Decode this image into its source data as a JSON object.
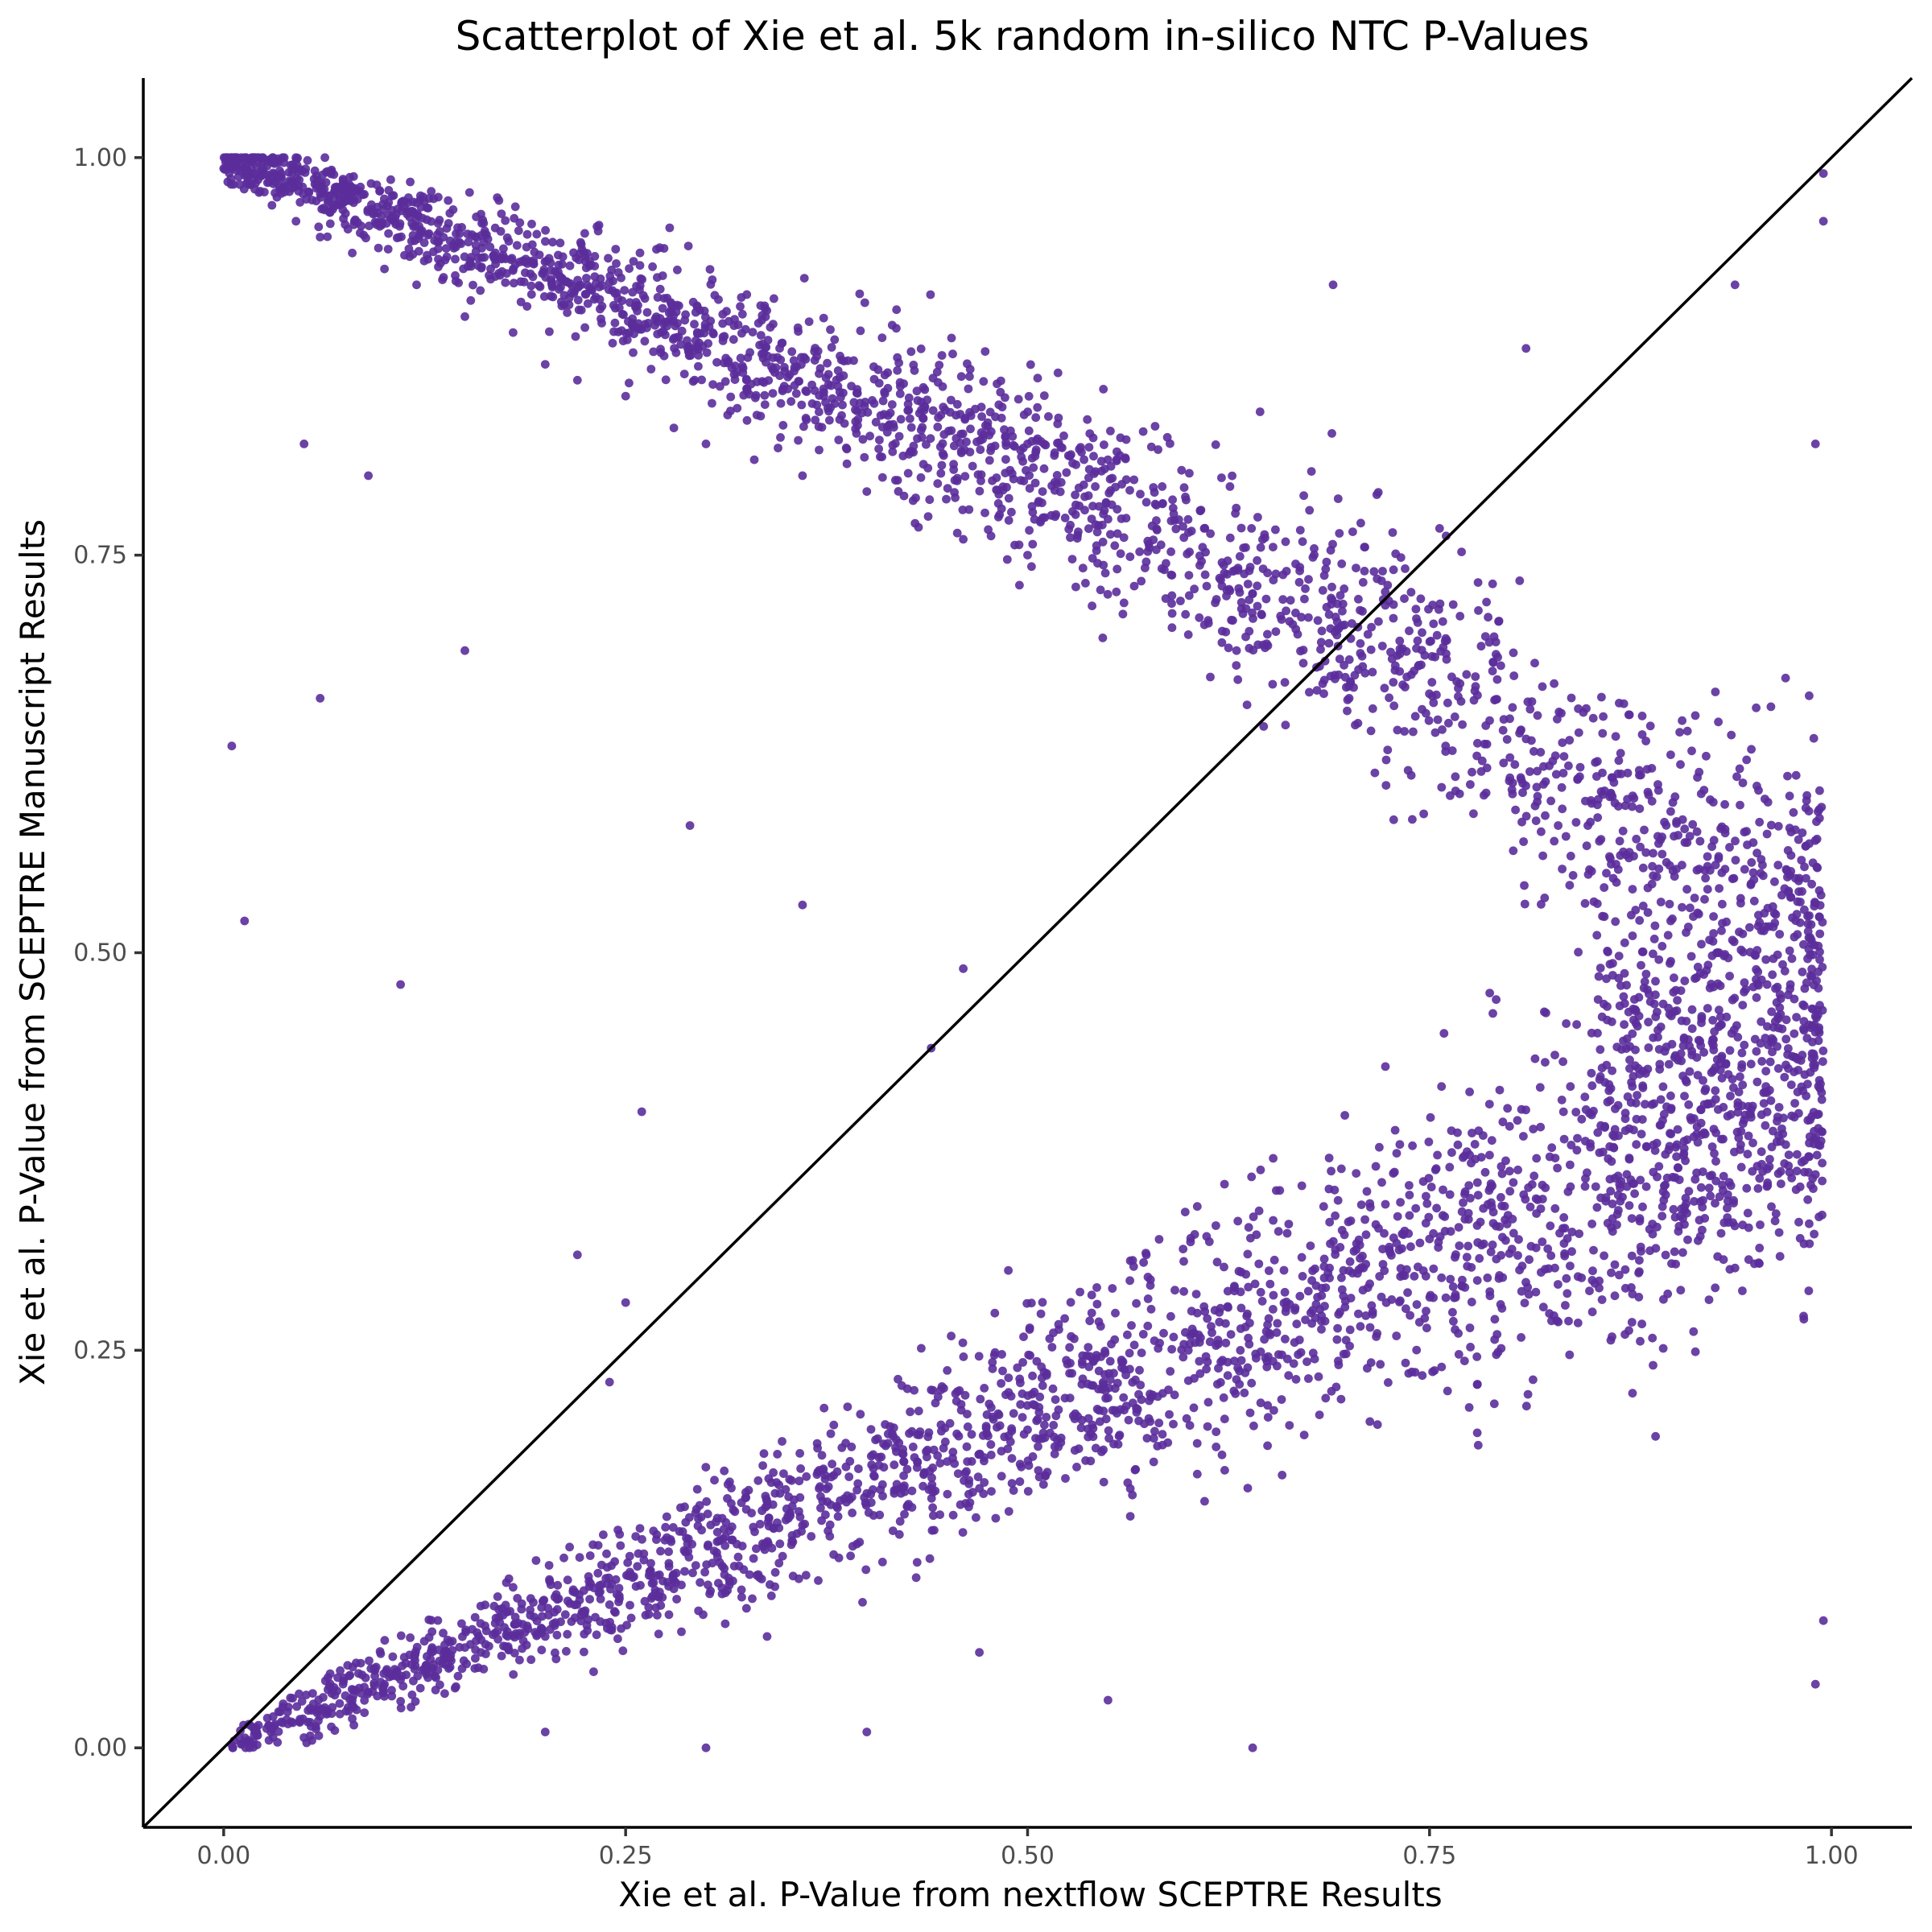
{
  "chart_data": {
    "type": "scatter",
    "title": "Scatterplot of Xie et al. 5k random in-silico NTC P-Values",
    "xlabel": "Xie et al. P-Value from nextflow SCEPTRE Results",
    "ylabel": "Xie et al. P-Value from SCEPTRE Manuscript Results",
    "xlim": [
      -0.05,
      1.05
    ],
    "ylim": [
      -0.05,
      1.05
    ],
    "x_ticks": [
      0.0,
      0.25,
      0.5,
      0.75,
      1.0
    ],
    "x_tick_labels": [
      "0.00",
      "0.25",
      "0.50",
      "0.75",
      "1.00"
    ],
    "y_ticks": [
      0.0,
      0.25,
      0.5,
      0.75,
      1.0
    ],
    "y_tick_labels": [
      "0.00",
      "0.25",
      "0.50",
      "0.75",
      "1.00"
    ],
    "grid": false,
    "reference_line": {
      "slope": 1,
      "intercept": 0
    },
    "point_color": "#5b2d9b",
    "point_count": 5000,
    "points": [
      [
        0.003,
        0.998
      ],
      [
        0.008,
        0.992
      ],
      [
        0.015,
        0.985
      ],
      [
        0.022,
        0.978
      ],
      [
        0.03,
        0.97
      ],
      [
        0.045,
        0.96
      ],
      [
        0.06,
        0.95
      ],
      [
        0.08,
        0.94
      ],
      [
        0.1,
        0.93
      ],
      [
        0.12,
        0.92
      ],
      [
        0.15,
        0.9
      ],
      [
        0.18,
        0.89
      ],
      [
        0.2,
        0.87
      ],
      [
        0.22,
        0.86
      ],
      [
        0.25,
        0.85
      ],
      [
        0.28,
        0.83
      ],
      [
        0.3,
        0.82
      ],
      [
        0.33,
        0.81
      ],
      [
        0.36,
        0.8
      ],
      [
        0.4,
        0.79
      ],
      [
        0.43,
        0.77
      ],
      [
        0.46,
        0.76
      ],
      [
        0.5,
        0.75
      ],
      [
        0.53,
        0.73
      ],
      [
        0.56,
        0.72
      ],
      [
        0.6,
        0.7
      ],
      [
        0.63,
        0.69
      ],
      [
        0.66,
        0.67
      ],
      [
        0.7,
        0.66
      ],
      [
        0.73,
        0.64
      ],
      [
        0.76,
        0.63
      ],
      [
        0.8,
        0.61
      ],
      [
        0.83,
        0.58
      ],
      [
        0.86,
        0.55
      ],
      [
        0.9,
        0.52
      ],
      [
        0.93,
        0.5
      ],
      [
        0.96,
        0.48
      ],
      [
        0.99,
        0.46
      ],
      [
        0.005,
        0.002
      ],
      [
        0.01,
        0.006
      ],
      [
        0.02,
        0.01
      ],
      [
        0.04,
        0.015
      ],
      [
        0.06,
        0.02
      ],
      [
        0.08,
        0.03
      ],
      [
        0.1,
        0.04
      ],
      [
        0.13,
        0.05
      ],
      [
        0.16,
        0.06
      ],
      [
        0.2,
        0.07
      ],
      [
        0.24,
        0.09
      ],
      [
        0.28,
        0.1
      ],
      [
        0.32,
        0.12
      ],
      [
        0.36,
        0.14
      ],
      [
        0.4,
        0.16
      ],
      [
        0.45,
        0.18
      ],
      [
        0.5,
        0.2
      ],
      [
        0.55,
        0.22
      ],
      [
        0.6,
        0.25
      ],
      [
        0.65,
        0.27
      ],
      [
        0.7,
        0.3
      ],
      [
        0.75,
        0.32
      ],
      [
        0.8,
        0.35
      ],
      [
        0.85,
        0.38
      ],
      [
        0.9,
        0.41
      ],
      [
        0.95,
        0.43
      ],
      [
        0.99,
        0.45
      ],
      [
        0.005,
        0.63
      ],
      [
        0.013,
        0.52
      ],
      [
        0.06,
        0.66
      ],
      [
        0.11,
        0.48
      ],
      [
        0.05,
        0.82
      ],
      [
        0.09,
        0.8
      ],
      [
        0.15,
        0.69
      ],
      [
        0.22,
        0.31
      ],
      [
        0.24,
        0.23
      ],
      [
        0.25,
        0.28
      ],
      [
        0.26,
        0.4
      ],
      [
        0.44,
        0.44
      ],
      [
        0.46,
        0.49
      ],
      [
        0.36,
        0.53
      ],
      [
        0.29,
        0.58
      ],
      [
        0.5,
        0.82
      ],
      [
        0.69,
        0.92
      ],
      [
        0.81,
        0.88
      ],
      [
        0.94,
        0.92
      ],
      [
        0.995,
        0.99
      ],
      [
        0.995,
        0.96
      ],
      [
        0.99,
        0.82
      ],
      [
        0.99,
        0.04
      ],
      [
        0.995,
        0.08
      ],
      [
        0.64,
        0.0
      ],
      [
        0.55,
        0.03
      ],
      [
        0.47,
        0.06
      ],
      [
        0.4,
        0.01
      ],
      [
        0.3,
        0.0
      ],
      [
        0.2,
        0.01
      ]
    ]
  }
}
